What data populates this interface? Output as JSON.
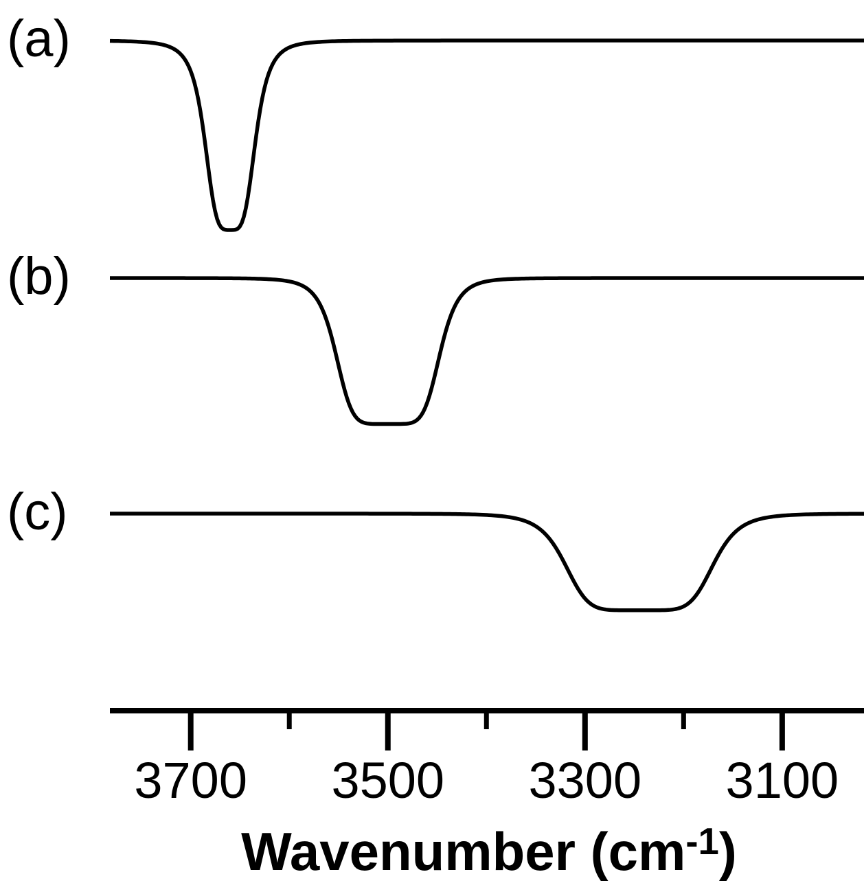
{
  "figure": {
    "background_color": "#ffffff",
    "line_color": "#000000",
    "trace_labels": [
      "(a)",
      "(b)",
      "(c)"
    ]
  },
  "axis": {
    "title_base": "Wavenumber (cm",
    "title_exponent": "-1",
    "title_close": ")",
    "major_tick_labels": [
      "3700",
      "3500",
      "3300",
      "3100"
    ]
  },
  "chart_data": {
    "type": "line",
    "title": "",
    "xlabel": "Wavenumber (cm-1)",
    "ylabel": "",
    "x_axis": {
      "unit": "cm-1",
      "reversed": true,
      "range_left": 3782,
      "range_right": 3017,
      "major_ticks": [
        3700,
        3500,
        3300,
        3100
      ],
      "minor_ticks": [
        3600,
        3400,
        3200
      ]
    },
    "grid": false,
    "legend": false,
    "style_note": "Three stacked transmittance-style spectra, each a flat baseline with one downward absorption dip; dip profile modeled as depth / (1 + (2*(w-center)/fwhm)^(2*order))",
    "traces": [
      {
        "label": "(a)",
        "band_center_cm1": 3660,
        "band_fwhm_cm1": 53,
        "relative_depth": 1.0,
        "flatness_order": 2,
        "description": "narrow deep dip near 3660 cm-1"
      },
      {
        "label": "(b)",
        "band_center_cm1": 3500,
        "band_fwhm_cm1": 107,
        "relative_depth": 0.77,
        "flatness_order": 3,
        "description": "medium-width flat-bottomed dip centered at 3500 cm-1"
      },
      {
        "label": "(c)",
        "band_center_cm1": 3245,
        "band_fwhm_cm1": 153,
        "relative_depth": 0.51,
        "flatness_order": 3,
        "description": "broad shallow dip centered near 3245 cm-1"
      }
    ]
  }
}
